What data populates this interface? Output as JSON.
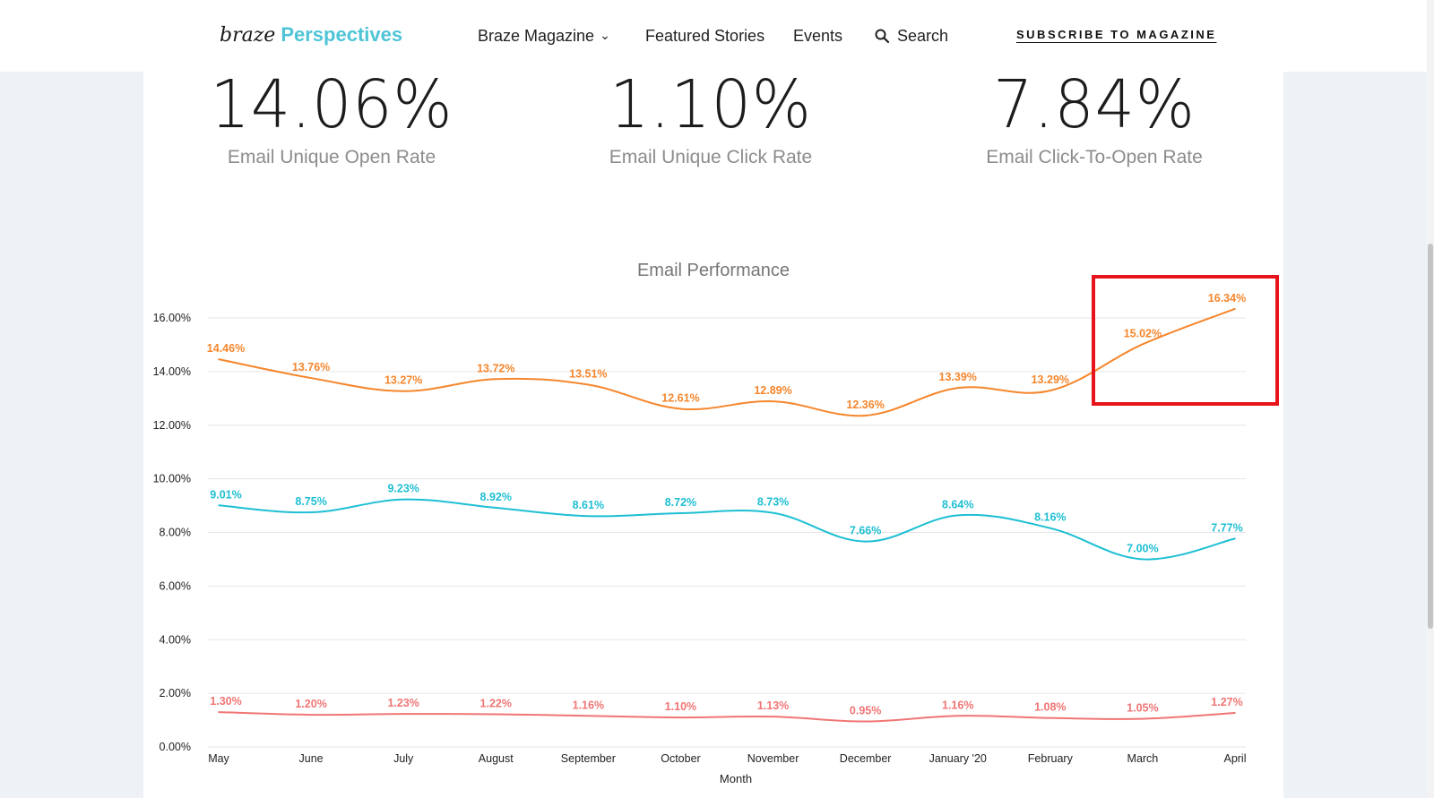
{
  "nav": {
    "logo_part1": "braze",
    "logo_part2": "Perspectives",
    "items": [
      "Braze Magazine",
      "Featured Stories",
      "Events",
      "Search"
    ],
    "subscribe": "SUBSCRIBE TO MAGAZINE",
    "icons": [
      "chevron-down-icon",
      "search-icon"
    ]
  },
  "stats": [
    {
      "value": "14.06%",
      "label": "Email Unique Open Rate"
    },
    {
      "value": "1.10%",
      "label": "Email Unique Click Rate"
    },
    {
      "value": "7.84%",
      "label": "Email Click-To-Open Rate"
    }
  ],
  "colors": {
    "open_rate": "#f5862c",
    "cto_rate": "#1ebfd3",
    "click_rate": "#f07575",
    "highlight": "#e8141b"
  },
  "chart_data": {
    "type": "line",
    "title": "Email Performance",
    "xlabel": "Month",
    "ylabel": "",
    "categories": [
      "May",
      "June",
      "July",
      "August",
      "September",
      "October",
      "November",
      "December",
      "January '20",
      "February",
      "March",
      "April"
    ],
    "ylim": [
      0,
      16
    ],
    "yticks": [
      "0.00%",
      "2.00%",
      "4.00%",
      "6.00%",
      "8.00%",
      "10.00%",
      "12.00%",
      "14.00%",
      "16.00%"
    ],
    "grid": true,
    "series": [
      {
        "key": "open_rate",
        "values": [
          14.46,
          13.76,
          13.27,
          13.72,
          13.51,
          12.61,
          12.89,
          12.36,
          13.39,
          13.29,
          15.02,
          16.34
        ],
        "labels": [
          "14.46%",
          "13.76%",
          "13.27%",
          "13.72%",
          "13.51%",
          "12.61%",
          "12.89%",
          "12.36%",
          "13.39%",
          "13.29%",
          "15.02%",
          "16.34%"
        ]
      },
      {
        "key": "cto_rate",
        "values": [
          9.01,
          8.75,
          9.23,
          8.92,
          8.61,
          8.72,
          8.73,
          7.66,
          8.64,
          8.16,
          7.0,
          7.77
        ],
        "labels": [
          "9.01%",
          "8.75%",
          "9.23%",
          "8.92%",
          "8.61%",
          "8.72%",
          "8.73%",
          "7.66%",
          "8.64%",
          "8.16%",
          "7.00%",
          "7.77%"
        ]
      },
      {
        "key": "click_rate",
        "values": [
          1.3,
          1.2,
          1.23,
          1.22,
          1.16,
          1.1,
          1.13,
          0.95,
          1.16,
          1.08,
          1.05,
          1.27
        ],
        "labels": [
          "1.30%",
          "1.20%",
          "1.23%",
          "1.22%",
          "1.16%",
          "1.10%",
          "1.13%",
          "0.95%",
          "1.16%",
          "1.08%",
          "1.05%",
          "1.27%"
        ]
      }
    ],
    "annotation": "red rectangle highlighting March–April open rate"
  }
}
